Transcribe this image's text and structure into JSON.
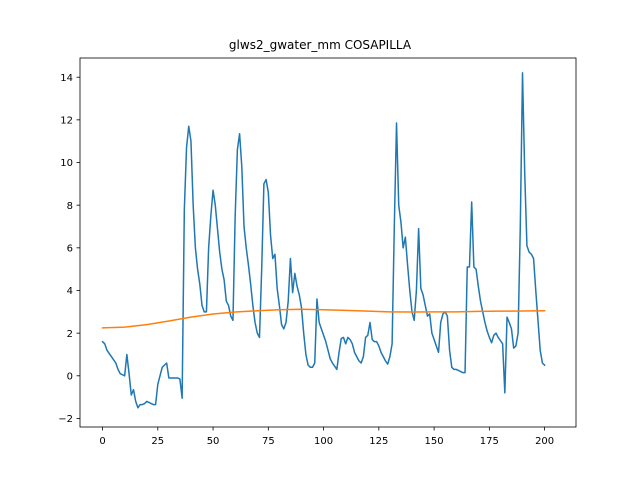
{
  "chart_data": {
    "type": "line",
    "title": "glws2_gwater_mm COSAPILLA",
    "xlabel": "",
    "ylabel": "",
    "xlim": [
      -10.2,
      214.2
    ],
    "ylim": [
      -2.4,
      14.9
    ],
    "xticks": [
      0,
      25,
      50,
      75,
      100,
      125,
      150,
      175,
      200
    ],
    "yticks": [
      -2,
      0,
      2,
      4,
      6,
      8,
      10,
      12,
      14
    ],
    "grid": false,
    "legend": "none",
    "series": [
      {
        "color": "#1f77b4",
        "points": [
          [
            0,
            1.6
          ],
          [
            1,
            1.5
          ],
          [
            2,
            1.2
          ],
          [
            3,
            1.05
          ],
          [
            4,
            0.9
          ],
          [
            5,
            0.75
          ],
          [
            6,
            0.6
          ],
          [
            7,
            0.3
          ],
          [
            8,
            0.1
          ],
          [
            9,
            0.05
          ],
          [
            10,
            0.0
          ],
          [
            11,
            1.0
          ],
          [
            12,
            0.1
          ],
          [
            13,
            -0.9
          ],
          [
            14,
            -0.65
          ],
          [
            15,
            -1.2
          ],
          [
            16,
            -1.5
          ],
          [
            17,
            -1.35
          ],
          [
            18,
            -1.35
          ],
          [
            19,
            -1.3
          ],
          [
            20,
            -1.2
          ],
          [
            21,
            -1.25
          ],
          [
            22,
            -1.3
          ],
          [
            23,
            -1.35
          ],
          [
            24,
            -1.35
          ],
          [
            25,
            -0.4
          ],
          [
            26,
            0.0
          ],
          [
            27,
            0.4
          ],
          [
            28,
            0.5
          ],
          [
            29,
            0.6
          ],
          [
            30,
            -0.1
          ],
          [
            31,
            -0.1
          ],
          [
            32,
            -0.1
          ],
          [
            33,
            -0.1
          ],
          [
            34,
            -0.1
          ],
          [
            35,
            -0.15
          ],
          [
            36,
            -1.05
          ],
          [
            37,
            7.8
          ],
          [
            38,
            10.7
          ],
          [
            39,
            11.7
          ],
          [
            40,
            11.0
          ],
          [
            41,
            8.0
          ],
          [
            42,
            6.0
          ],
          [
            43,
            5.0
          ],
          [
            44,
            4.3
          ],
          [
            45,
            3.3
          ],
          [
            46,
            3.0
          ],
          [
            47,
            3.0
          ],
          [
            48,
            6.0
          ],
          [
            49,
            7.5
          ],
          [
            50,
            8.7
          ],
          [
            51,
            8.0
          ],
          [
            52,
            6.9
          ],
          [
            53,
            5.8
          ],
          [
            54,
            5.0
          ],
          [
            55,
            4.5
          ],
          [
            56,
            3.5
          ],
          [
            57,
            3.3
          ],
          [
            58,
            2.8
          ],
          [
            59,
            2.6
          ],
          [
            60,
            7.5
          ],
          [
            61,
            10.6
          ],
          [
            62,
            11.35
          ],
          [
            63,
            9.8
          ],
          [
            64,
            7.0
          ],
          [
            65,
            6.0
          ],
          [
            66,
            5.2
          ],
          [
            67,
            4.3
          ],
          [
            68,
            3.3
          ],
          [
            69,
            2.5
          ],
          [
            70,
            2.0
          ],
          [
            71,
            1.8
          ],
          [
            72,
            5.0
          ],
          [
            73,
            9.0
          ],
          [
            74,
            9.2
          ],
          [
            75,
            8.6
          ],
          [
            76,
            6.6
          ],
          [
            77,
            5.5
          ],
          [
            78,
            5.7
          ],
          [
            79,
            4.1
          ],
          [
            80,
            3.3
          ],
          [
            81,
            2.4
          ],
          [
            82,
            2.2
          ],
          [
            83,
            2.5
          ],
          [
            84,
            3.5
          ],
          [
            85,
            5.5
          ],
          [
            86,
            3.9
          ],
          [
            87,
            4.8
          ],
          [
            88,
            4.2
          ],
          [
            89,
            3.8
          ],
          [
            90,
            3.2
          ],
          [
            91,
            2.0
          ],
          [
            92,
            1.0
          ],
          [
            93,
            0.5
          ],
          [
            94,
            0.4
          ],
          [
            95,
            0.4
          ],
          [
            96,
            0.6
          ],
          [
            97,
            3.6
          ],
          [
            98,
            2.5
          ],
          [
            99,
            2.2
          ],
          [
            100,
            1.9
          ],
          [
            101,
            1.6
          ],
          [
            102,
            1.2
          ],
          [
            103,
            0.8
          ],
          [
            104,
            0.6
          ],
          [
            105,
            0.45
          ],
          [
            106,
            0.3
          ],
          [
            107,
            1.1
          ],
          [
            108,
            1.75
          ],
          [
            109,
            1.8
          ],
          [
            110,
            1.5
          ],
          [
            111,
            1.8
          ],
          [
            112,
            1.7
          ],
          [
            113,
            1.5
          ],
          [
            114,
            1.1
          ],
          [
            115,
            0.9
          ],
          [
            116,
            0.7
          ],
          [
            117,
            0.6
          ],
          [
            118,
            0.9
          ],
          [
            119,
            1.8
          ],
          [
            120,
            1.9
          ],
          [
            121,
            2.5
          ],
          [
            122,
            1.7
          ],
          [
            123,
            1.6
          ],
          [
            124,
            1.6
          ],
          [
            125,
            1.4
          ],
          [
            126,
            1.1
          ],
          [
            127,
            0.9
          ],
          [
            128,
            0.7
          ],
          [
            129,
            0.55
          ],
          [
            130,
            0.9
          ],
          [
            131,
            1.5
          ],
          [
            132,
            7.0
          ],
          [
            133,
            11.85
          ],
          [
            134,
            8.0
          ],
          [
            135,
            7.2
          ],
          [
            136,
            6.0
          ],
          [
            137,
            6.5
          ],
          [
            138,
            5.2
          ],
          [
            139,
            4.0
          ],
          [
            140,
            3.0
          ],
          [
            141,
            2.6
          ],
          [
            142,
            4.0
          ],
          [
            143,
            6.9
          ],
          [
            144,
            4.1
          ],
          [
            145,
            3.8
          ],
          [
            146,
            3.3
          ],
          [
            147,
            2.8
          ],
          [
            148,
            2.9
          ],
          [
            149,
            2.0
          ],
          [
            150,
            1.7
          ],
          [
            151,
            1.4
          ],
          [
            152,
            1.1
          ],
          [
            153,
            2.5
          ],
          [
            154,
            2.9
          ],
          [
            155,
            3.0
          ],
          [
            156,
            2.8
          ],
          [
            157,
            1.2
          ],
          [
            158,
            0.4
          ],
          [
            159,
            0.3
          ],
          [
            160,
            0.3
          ],
          [
            161,
            0.25
          ],
          [
            162,
            0.2
          ],
          [
            163,
            0.15
          ],
          [
            164,
            0.15
          ],
          [
            165,
            5.1
          ],
          [
            166,
            5.1
          ],
          [
            167,
            8.15
          ],
          [
            168,
            5.1
          ],
          [
            169,
            5.0
          ],
          [
            170,
            4.2
          ],
          [
            171,
            3.5
          ],
          [
            172,
            3.0
          ],
          [
            173,
            2.5
          ],
          [
            174,
            2.1
          ],
          [
            175,
            1.8
          ],
          [
            176,
            1.55
          ],
          [
            177,
            1.9
          ],
          [
            178,
            2.0
          ],
          [
            179,
            1.8
          ],
          [
            180,
            1.65
          ],
          [
            181,
            1.5
          ],
          [
            182,
            -0.8
          ],
          [
            183,
            2.75
          ],
          [
            184,
            2.5
          ],
          [
            185,
            2.2
          ],
          [
            186,
            1.3
          ],
          [
            187,
            1.4
          ],
          [
            188,
            2.0
          ],
          [
            189,
            7.0
          ],
          [
            190,
            14.2
          ],
          [
            191,
            9.5
          ],
          [
            192,
            6.1
          ],
          [
            193,
            5.8
          ],
          [
            194,
            5.7
          ],
          [
            195,
            5.5
          ],
          [
            196,
            4.0
          ],
          [
            197,
            2.6
          ],
          [
            198,
            1.2
          ],
          [
            199,
            0.6
          ],
          [
            200,
            0.5
          ]
        ]
      },
      {
        "color": "#ff7f0e",
        "points": [
          [
            0,
            2.25
          ],
          [
            10,
            2.28
          ],
          [
            20,
            2.4
          ],
          [
            30,
            2.57
          ],
          [
            40,
            2.75
          ],
          [
            50,
            2.9
          ],
          [
            60,
            2.99
          ],
          [
            70,
            3.05
          ],
          [
            80,
            3.1
          ],
          [
            90,
            3.12
          ],
          [
            100,
            3.1
          ],
          [
            110,
            3.07
          ],
          [
            120,
            3.03
          ],
          [
            130,
            3.0
          ],
          [
            140,
            2.99
          ],
          [
            150,
            3.0
          ],
          [
            160,
            3.0
          ],
          [
            170,
            3.02
          ],
          [
            180,
            3.03
          ],
          [
            190,
            3.04
          ],
          [
            200,
            3.05
          ]
        ]
      }
    ]
  }
}
